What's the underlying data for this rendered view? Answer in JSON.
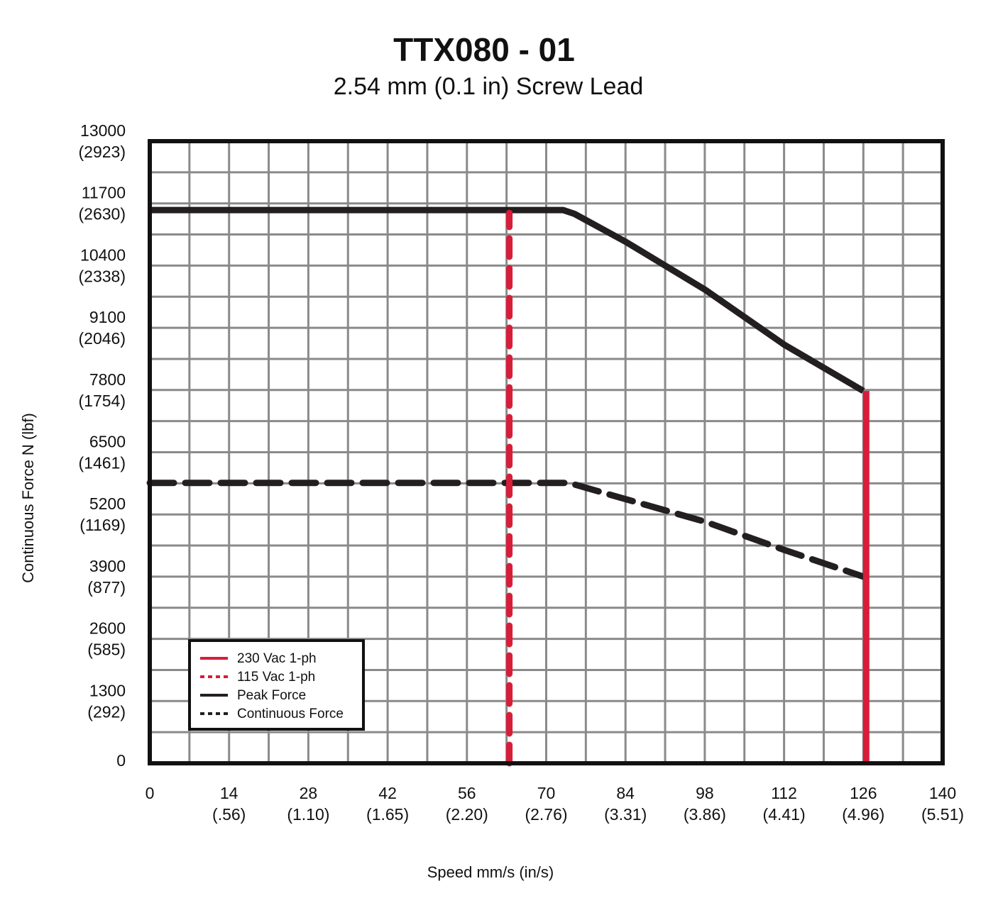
{
  "chart_data": {
    "type": "line",
    "title": "TTX080 - 01",
    "subtitle": "2.54 mm (0.1 in) Screw Lead",
    "xlabel": "Speed mm/s (in/s)",
    "ylabel": "Continuous Force N (lbf)",
    "xlim": [
      0,
      140
    ],
    "ylim": [
      0,
      13000
    ],
    "grid": true,
    "legend_position": "bottom-left",
    "x_ticks": [
      {
        "value": 0,
        "label": "0",
        "sub": ""
      },
      {
        "value": 14,
        "label": "14",
        "sub": "(.56)"
      },
      {
        "value": 28,
        "label": "28",
        "sub": "(1.10)"
      },
      {
        "value": 42,
        "label": "42",
        "sub": "(1.65)"
      },
      {
        "value": 56,
        "label": "56",
        "sub": "(2.20)"
      },
      {
        "value": 70,
        "label": "70",
        "sub": "(2.76)"
      },
      {
        "value": 84,
        "label": "84",
        "sub": "(3.31)"
      },
      {
        "value": 98,
        "label": "98",
        "sub": "(3.86)"
      },
      {
        "value": 112,
        "label": "112",
        "sub": "(4.41)"
      },
      {
        "value": 126,
        "label": "126",
        "sub": "(4.96)"
      },
      {
        "value": 140,
        "label": "140",
        "sub": "(5.51)"
      }
    ],
    "y_ticks": [
      {
        "value": 0,
        "label": "0",
        "sub": ""
      },
      {
        "value": 1300,
        "label": "1300",
        "sub": "(292)"
      },
      {
        "value": 2600,
        "label": "2600",
        "sub": "(585)"
      },
      {
        "value": 3900,
        "label": "3900",
        "sub": "(877)"
      },
      {
        "value": 5200,
        "label": "5200",
        "sub": "(1169)"
      },
      {
        "value": 6500,
        "label": "6500",
        "sub": "(1461)"
      },
      {
        "value": 7800,
        "label": "7800",
        "sub": "(1754)"
      },
      {
        "value": 9100,
        "label": "9100",
        "sub": "(2046)"
      },
      {
        "value": 10400,
        "label": "10400",
        "sub": "(2338)"
      },
      {
        "value": 11700,
        "label": "11700",
        "sub": "(2630)"
      },
      {
        "value": 13000,
        "label": "13000",
        "sub": "(2923)"
      }
    ],
    "series": [
      {
        "name": "Peak Force",
        "style": "solid",
        "color": "#231f20",
        "points": [
          [
            0,
            11560
          ],
          [
            73,
            11560
          ],
          [
            75,
            11480
          ],
          [
            84,
            10900
          ],
          [
            98,
            9900
          ],
          [
            112,
            8750
          ],
          [
            126,
            7780
          ]
        ]
      },
      {
        "name": "Continuous Force",
        "style": "dashed",
        "color": "#231f20",
        "points": [
          [
            0,
            5860
          ],
          [
            74,
            5860
          ],
          [
            84,
            5520
          ],
          [
            98,
            5050
          ],
          [
            112,
            4460
          ],
          [
            126,
            3900
          ]
        ]
      },
      {
        "name": "115 Vac 1-ph",
        "style": "dashed",
        "color": "#d71d3a",
        "points": [
          [
            63.5,
            0
          ],
          [
            63.5,
            11500
          ]
        ]
      },
      {
        "name": "230 Vac 1-ph",
        "style": "solid",
        "color": "#d71d3a",
        "points": [
          [
            126.5,
            0
          ],
          [
            126.5,
            7780
          ]
        ]
      }
    ],
    "legend": [
      {
        "label": "230 Vac 1-ph",
        "color": "#d71d3a",
        "style": "solid"
      },
      {
        "label": "115 Vac 1-ph",
        "color": "#d71d3a",
        "style": "dotted"
      },
      {
        "label": "Peak Force",
        "color": "#231f20",
        "style": "solid"
      },
      {
        "label": "Continuous Force",
        "color": "#231f20",
        "style": "dotted"
      }
    ]
  }
}
